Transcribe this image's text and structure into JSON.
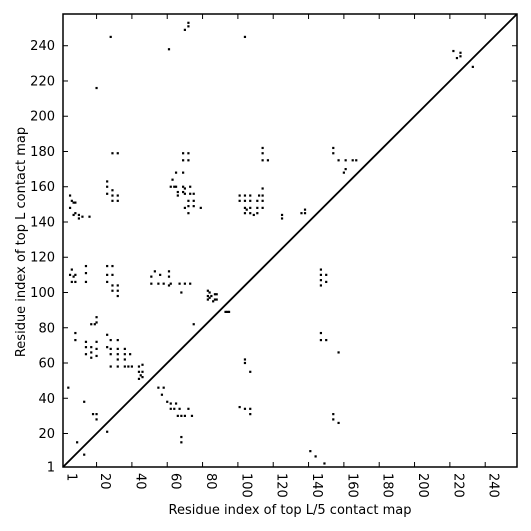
{
  "chart_data": {
    "type": "scatter",
    "title": "",
    "xlabel": "Residue index of top L/5 contact map",
    "ylabel": "Residue index of top L contact map",
    "xlim": [
      1,
      258
    ],
    "ylim": [
      1,
      258
    ],
    "x_ticks": [
      1,
      20,
      40,
      60,
      80,
      100,
      120,
      140,
      160,
      180,
      200,
      220,
      240
    ],
    "y_ticks": [
      1,
      20,
      40,
      60,
      80,
      100,
      120,
      140,
      160,
      180,
      200,
      220,
      240
    ],
    "x_tick_labels": [
      "1",
      "20",
      "40",
      "60",
      "80",
      "100",
      "120",
      "140",
      "160",
      "180",
      "200",
      "220",
      "240"
    ],
    "y_tick_labels": [
      "1",
      "20",
      "40",
      "60",
      "80",
      "100",
      "120",
      "140",
      "160",
      "180",
      "200",
      "220",
      "240"
    ],
    "grid": false,
    "diagonal": {
      "from": [
        1,
        1
      ],
      "to": [
        258,
        258
      ]
    },
    "series": [
      {
        "points": [
          [
            4,
            46
          ],
          [
            5,
            110
          ],
          [
            5,
            148
          ],
          [
            5,
            155
          ],
          [
            6,
            106
          ],
          [
            6,
            113
          ],
          [
            6,
            152
          ],
          [
            7,
            109
          ],
          [
            7,
            144
          ],
          [
            7,
            151
          ],
          [
            8,
            77
          ],
          [
            8,
            73
          ],
          [
            8,
            110
          ],
          [
            8,
            106
          ],
          [
            8,
            145
          ],
          [
            8,
            151
          ],
          [
            9,
            15
          ],
          [
            10,
            142
          ],
          [
            10,
            144
          ],
          [
            12,
            143
          ],
          [
            13,
            38
          ],
          [
            13,
            8
          ],
          [
            14,
            72
          ],
          [
            14,
            69
          ],
          [
            14,
            65
          ],
          [
            14,
            106
          ],
          [
            14,
            111
          ],
          [
            14,
            115
          ],
          [
            16,
            143
          ],
          [
            17,
            63
          ],
          [
            17,
            66
          ],
          [
            17,
            82
          ],
          [
            17,
            69
          ],
          [
            18,
            31
          ],
          [
            19,
            82
          ],
          [
            20,
            28
          ],
          [
            20,
            31
          ],
          [
            20,
            64
          ],
          [
            20,
            68
          ],
          [
            20,
            72
          ],
          [
            20,
            83
          ],
          [
            20,
            86
          ],
          [
            20,
            216
          ],
          [
            26,
            21
          ],
          [
            26,
            76
          ],
          [
            26,
            69
          ],
          [
            26,
            106
          ],
          [
            26,
            110
          ],
          [
            26,
            115
          ],
          [
            26,
            156
          ],
          [
            26,
            160
          ],
          [
            26,
            163
          ],
          [
            28,
            245
          ],
          [
            28,
            68
          ],
          [
            28,
            65
          ],
          [
            28,
            58
          ],
          [
            28,
            73
          ],
          [
            29,
            101
          ],
          [
            29,
            104
          ],
          [
            29,
            110
          ],
          [
            29,
            115
          ],
          [
            29,
            152
          ],
          [
            29,
            155
          ],
          [
            29,
            158
          ],
          [
            29,
            179
          ],
          [
            32,
            58
          ],
          [
            32,
            62
          ],
          [
            32,
            65
          ],
          [
            32,
            68
          ],
          [
            32,
            73
          ],
          [
            32,
            98
          ],
          [
            32,
            101
          ],
          [
            32,
            104
          ],
          [
            32,
            152
          ],
          [
            32,
            155
          ],
          [
            32,
            179
          ],
          [
            36,
            58
          ],
          [
            36,
            62
          ],
          [
            36,
            65
          ],
          [
            36,
            68
          ],
          [
            38,
            58
          ],
          [
            39,
            65
          ],
          [
            40,
            58
          ],
          [
            44,
            51
          ],
          [
            44,
            55
          ],
          [
            44,
            58
          ],
          [
            45,
            53
          ],
          [
            46,
            52
          ],
          [
            46,
            55
          ],
          [
            46,
            59
          ],
          [
            51,
            109
          ],
          [
            51,
            105
          ],
          [
            53,
            112
          ],
          [
            55,
            105
          ],
          [
            55,
            46
          ],
          [
            56,
            110
          ],
          [
            57,
            42
          ],
          [
            58,
            46
          ],
          [
            58,
            105
          ],
          [
            60,
            38
          ],
          [
            61,
            112
          ],
          [
            61,
            109
          ],
          [
            61,
            104
          ],
          [
            61,
            238
          ],
          [
            62,
            34
          ],
          [
            62,
            37
          ],
          [
            62,
            105
          ],
          [
            62,
            160
          ],
          [
            63,
            164
          ],
          [
            64,
            34
          ],
          [
            64,
            160
          ],
          [
            65,
            160
          ],
          [
            65,
            168
          ],
          [
            65,
            37
          ],
          [
            66,
            30
          ],
          [
            66,
            157
          ],
          [
            66,
            155
          ],
          [
            67,
            34
          ],
          [
            67,
            105
          ],
          [
            68,
            30
          ],
          [
            68,
            100
          ],
          [
            68,
            15
          ],
          [
            68,
            18
          ],
          [
            69,
            157
          ],
          [
            69,
            160
          ],
          [
            69,
            168
          ],
          [
            69,
            175
          ],
          [
            69,
            179
          ],
          [
            70,
            30
          ],
          [
            70,
            105
          ],
          [
            70,
            156
          ],
          [
            70,
            159
          ],
          [
            70,
            148
          ],
          [
            70,
            249
          ],
          [
            72,
            34
          ],
          [
            72,
            152
          ],
          [
            72,
            145
          ],
          [
            72,
            149
          ],
          [
            72,
            175
          ],
          [
            72,
            179
          ],
          [
            72,
            251
          ],
          [
            72,
            253
          ],
          [
            73,
            105
          ],
          [
            73,
            156
          ],
          [
            73,
            160
          ],
          [
            74,
            30
          ],
          [
            75,
            152
          ],
          [
            75,
            156
          ],
          [
            75,
            149
          ],
          [
            75,
            82
          ],
          [
            79,
            148
          ],
          [
            83,
            96
          ],
          [
            83,
            98
          ],
          [
            83,
            101
          ],
          [
            84,
            97
          ],
          [
            84,
            100
          ],
          [
            85,
            98
          ],
          [
            86,
            95
          ],
          [
            87,
            96
          ],
          [
            87,
            99
          ],
          [
            88,
            96
          ],
          [
            88,
            99
          ],
          [
            93,
            89
          ],
          [
            94,
            89
          ],
          [
            95,
            89
          ],
          [
            101,
            35
          ],
          [
            101,
            152
          ],
          [
            101,
            155
          ],
          [
            104,
            34
          ],
          [
            104,
            60
          ],
          [
            104,
            62
          ],
          [
            104,
            145
          ],
          [
            104,
            148
          ],
          [
            104,
            152
          ],
          [
            104,
            155
          ],
          [
            104,
            245
          ],
          [
            105,
            147
          ],
          [
            107,
            31
          ],
          [
            107,
            34
          ],
          [
            107,
            55
          ],
          [
            107,
            145
          ],
          [
            107,
            148
          ],
          [
            107,
            152
          ],
          [
            107,
            155
          ],
          [
            109,
            144
          ],
          [
            111,
            145
          ],
          [
            111,
            148
          ],
          [
            111,
            152
          ],
          [
            112,
            155
          ],
          [
            114,
            148
          ],
          [
            114,
            152
          ],
          [
            114,
            155
          ],
          [
            114,
            159
          ],
          [
            114,
            175
          ],
          [
            114,
            179
          ],
          [
            114,
            182
          ],
          [
            117,
            175
          ],
          [
            125,
            142
          ],
          [
            125,
            144
          ],
          [
            136,
            145
          ],
          [
            138,
            145
          ],
          [
            138,
            147
          ],
          [
            141,
            10
          ],
          [
            144,
            7
          ],
          [
            147,
            104
          ],
          [
            147,
            107
          ],
          [
            147,
            110
          ],
          [
            147,
            113
          ],
          [
            147,
            73
          ],
          [
            147,
            77
          ],
          [
            149,
            3
          ],
          [
            150,
            73
          ],
          [
            150,
            106
          ],
          [
            150,
            110
          ],
          [
            154,
            28
          ],
          [
            154,
            31
          ],
          [
            154,
            179
          ],
          [
            154,
            182
          ],
          [
            157,
            26
          ],
          [
            157,
            66
          ],
          [
            157,
            175
          ],
          [
            160,
            168
          ],
          [
            161,
            170
          ],
          [
            161,
            175
          ],
          [
            165,
            175
          ],
          [
            167,
            175
          ],
          [
            222,
            237
          ],
          [
            224,
            233
          ],
          [
            226,
            236
          ],
          [
            226,
            234
          ],
          [
            233,
            228
          ]
        ]
      }
    ]
  }
}
